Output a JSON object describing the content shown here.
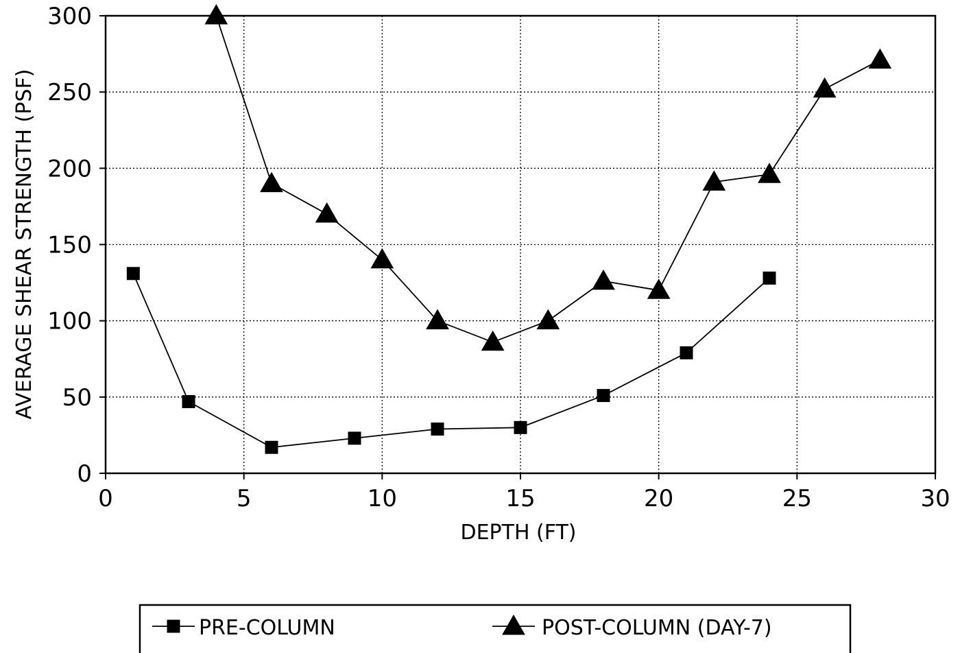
{
  "chart_data": {
    "type": "line",
    "title": "",
    "xlabel": "DEPTH (FT)",
    "ylabel": "AVERAGE SHEAR STRENGTH (PSF)",
    "xlim": [
      0,
      30
    ],
    "ylim": [
      0,
      300
    ],
    "xticks": [
      0,
      5,
      10,
      15,
      20,
      25,
      30
    ],
    "yticks": [
      0,
      50,
      100,
      150,
      200,
      250,
      300
    ],
    "grid": true,
    "legend_position": "bottom",
    "series": [
      {
        "name": "PRE-COLUMN",
        "marker": "square",
        "x": [
          1,
          3,
          6,
          9,
          12,
          15,
          18,
          21,
          24
        ],
        "y": [
          131,
          47,
          17,
          23,
          29,
          30,
          51,
          79,
          128
        ]
      },
      {
        "name": "POST-COLUMN (DAY-7)",
        "marker": "triangle",
        "x": [
          4,
          6,
          8,
          10,
          12,
          14,
          16,
          18,
          20,
          22,
          24,
          26,
          28
        ],
        "y": [
          300,
          190,
          170,
          140,
          100,
          86,
          100,
          126,
          120,
          191,
          196,
          252,
          271
        ]
      }
    ]
  }
}
